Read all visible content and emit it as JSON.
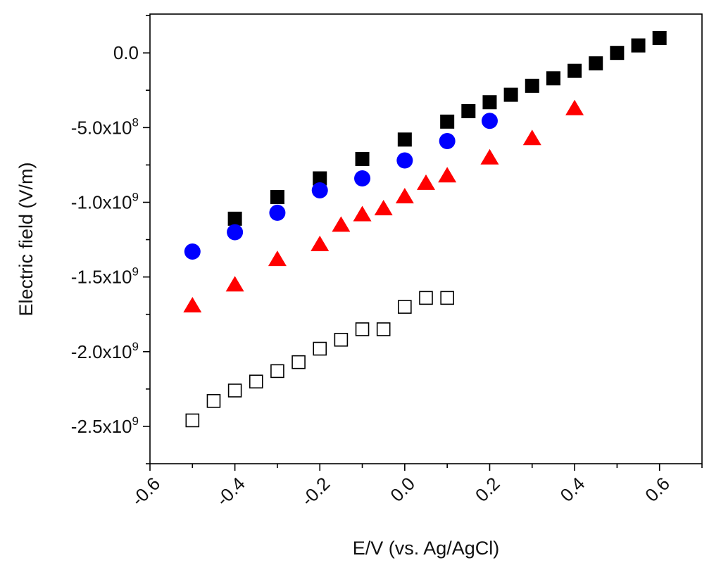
{
  "chart_data": {
    "type": "scatter",
    "title": "",
    "xlabel": "E/V (vs. Ag/AgCl)",
    "ylabel": "Electric field (V/m)",
    "xlim": [
      -0.6,
      0.7
    ],
    "ylim": [
      -2750000000.0,
      260000000.0
    ],
    "x_ticks": [
      -0.6,
      -0.4,
      -0.2,
      0.0,
      0.2,
      0.4,
      0.6
    ],
    "x_tick_labels": [
      "-0.6",
      "-0.4",
      "-0.2",
      "0.0",
      "0.2",
      "0.4",
      "0.6"
    ],
    "y_ticks": [
      0,
      -500000000.0,
      -1000000000.0,
      -1500000000.0,
      -2000000000.0,
      -2500000000.0
    ],
    "y_tick_labels": [
      {
        "mantissa": "0.0",
        "exp": ""
      },
      {
        "mantissa": "-5.0x10",
        "exp": "8"
      },
      {
        "mantissa": "-1.0x10",
        "exp": "9"
      },
      {
        "mantissa": "-1.5x10",
        "exp": "9"
      },
      {
        "mantissa": "-2.0x10",
        "exp": "9"
      },
      {
        "mantissa": "-2.5x10",
        "exp": "9"
      }
    ],
    "series": [
      {
        "name": "filled squares",
        "marker": "square-filled",
        "color": "#000000",
        "x": [
          -0.4,
          -0.3,
          -0.2,
          -0.1,
          0.0,
          0.1,
          0.15,
          0.2,
          0.25,
          0.3,
          0.35,
          0.4,
          0.45,
          0.5,
          0.55,
          0.6
        ],
        "y": [
          -1110000000.0,
          -965000000.0,
          -840000000.0,
          -710000000.0,
          -580000000.0,
          -460000000.0,
          -390000000.0,
          -330000000.0,
          -280000000.0,
          -220000000.0,
          -170000000.0,
          -120000000.0,
          -70000000.0,
          0.0,
          50000000.0,
          100000000.0
        ]
      },
      {
        "name": "circles",
        "marker": "circle",
        "color": "#0000ff",
        "x": [
          -0.5,
          -0.4,
          -0.3,
          -0.2,
          -0.1,
          0.0,
          0.1,
          0.2
        ],
        "y": [
          -1330000000.0,
          -1200000000.0,
          -1070000000.0,
          -920000000.0,
          -840000000.0,
          -720000000.0,
          -590000000.0,
          -455000000.0
        ]
      },
      {
        "name": "triangles",
        "marker": "triangle",
        "color": "#ff0000",
        "x": [
          -0.5,
          -0.4,
          -0.3,
          -0.2,
          -0.15,
          -0.1,
          -0.05,
          0.0,
          0.05,
          0.1,
          0.2,
          0.3,
          0.4
        ],
        "y": [
          -1690000000.0,
          -1550000000.0,
          -1380000000.0,
          -1280000000.0,
          -1150000000.0,
          -1080000000.0,
          -1040000000.0,
          -960000000.0,
          -870000000.0,
          -820000000.0,
          -700000000.0,
          -570000000.0,
          -370000000.0
        ]
      },
      {
        "name": "open squares",
        "marker": "square-open",
        "color": "#000000",
        "x": [
          -0.5,
          -0.45,
          -0.4,
          -0.35,
          -0.3,
          -0.25,
          -0.2,
          -0.15,
          -0.1,
          -0.05,
          0.0,
          0.05,
          0.1
        ],
        "y": [
          -2460000000.0,
          -2330000000.0,
          -2260000000.0,
          -2200000000.0,
          -2130000000.0,
          -2070000000.0,
          -1980000000.0,
          -1920000000.0,
          -1850000000.0,
          -1850000000.0,
          -1700000000.0,
          -1640000000.0,
          -1640000000.0
        ]
      }
    ]
  }
}
